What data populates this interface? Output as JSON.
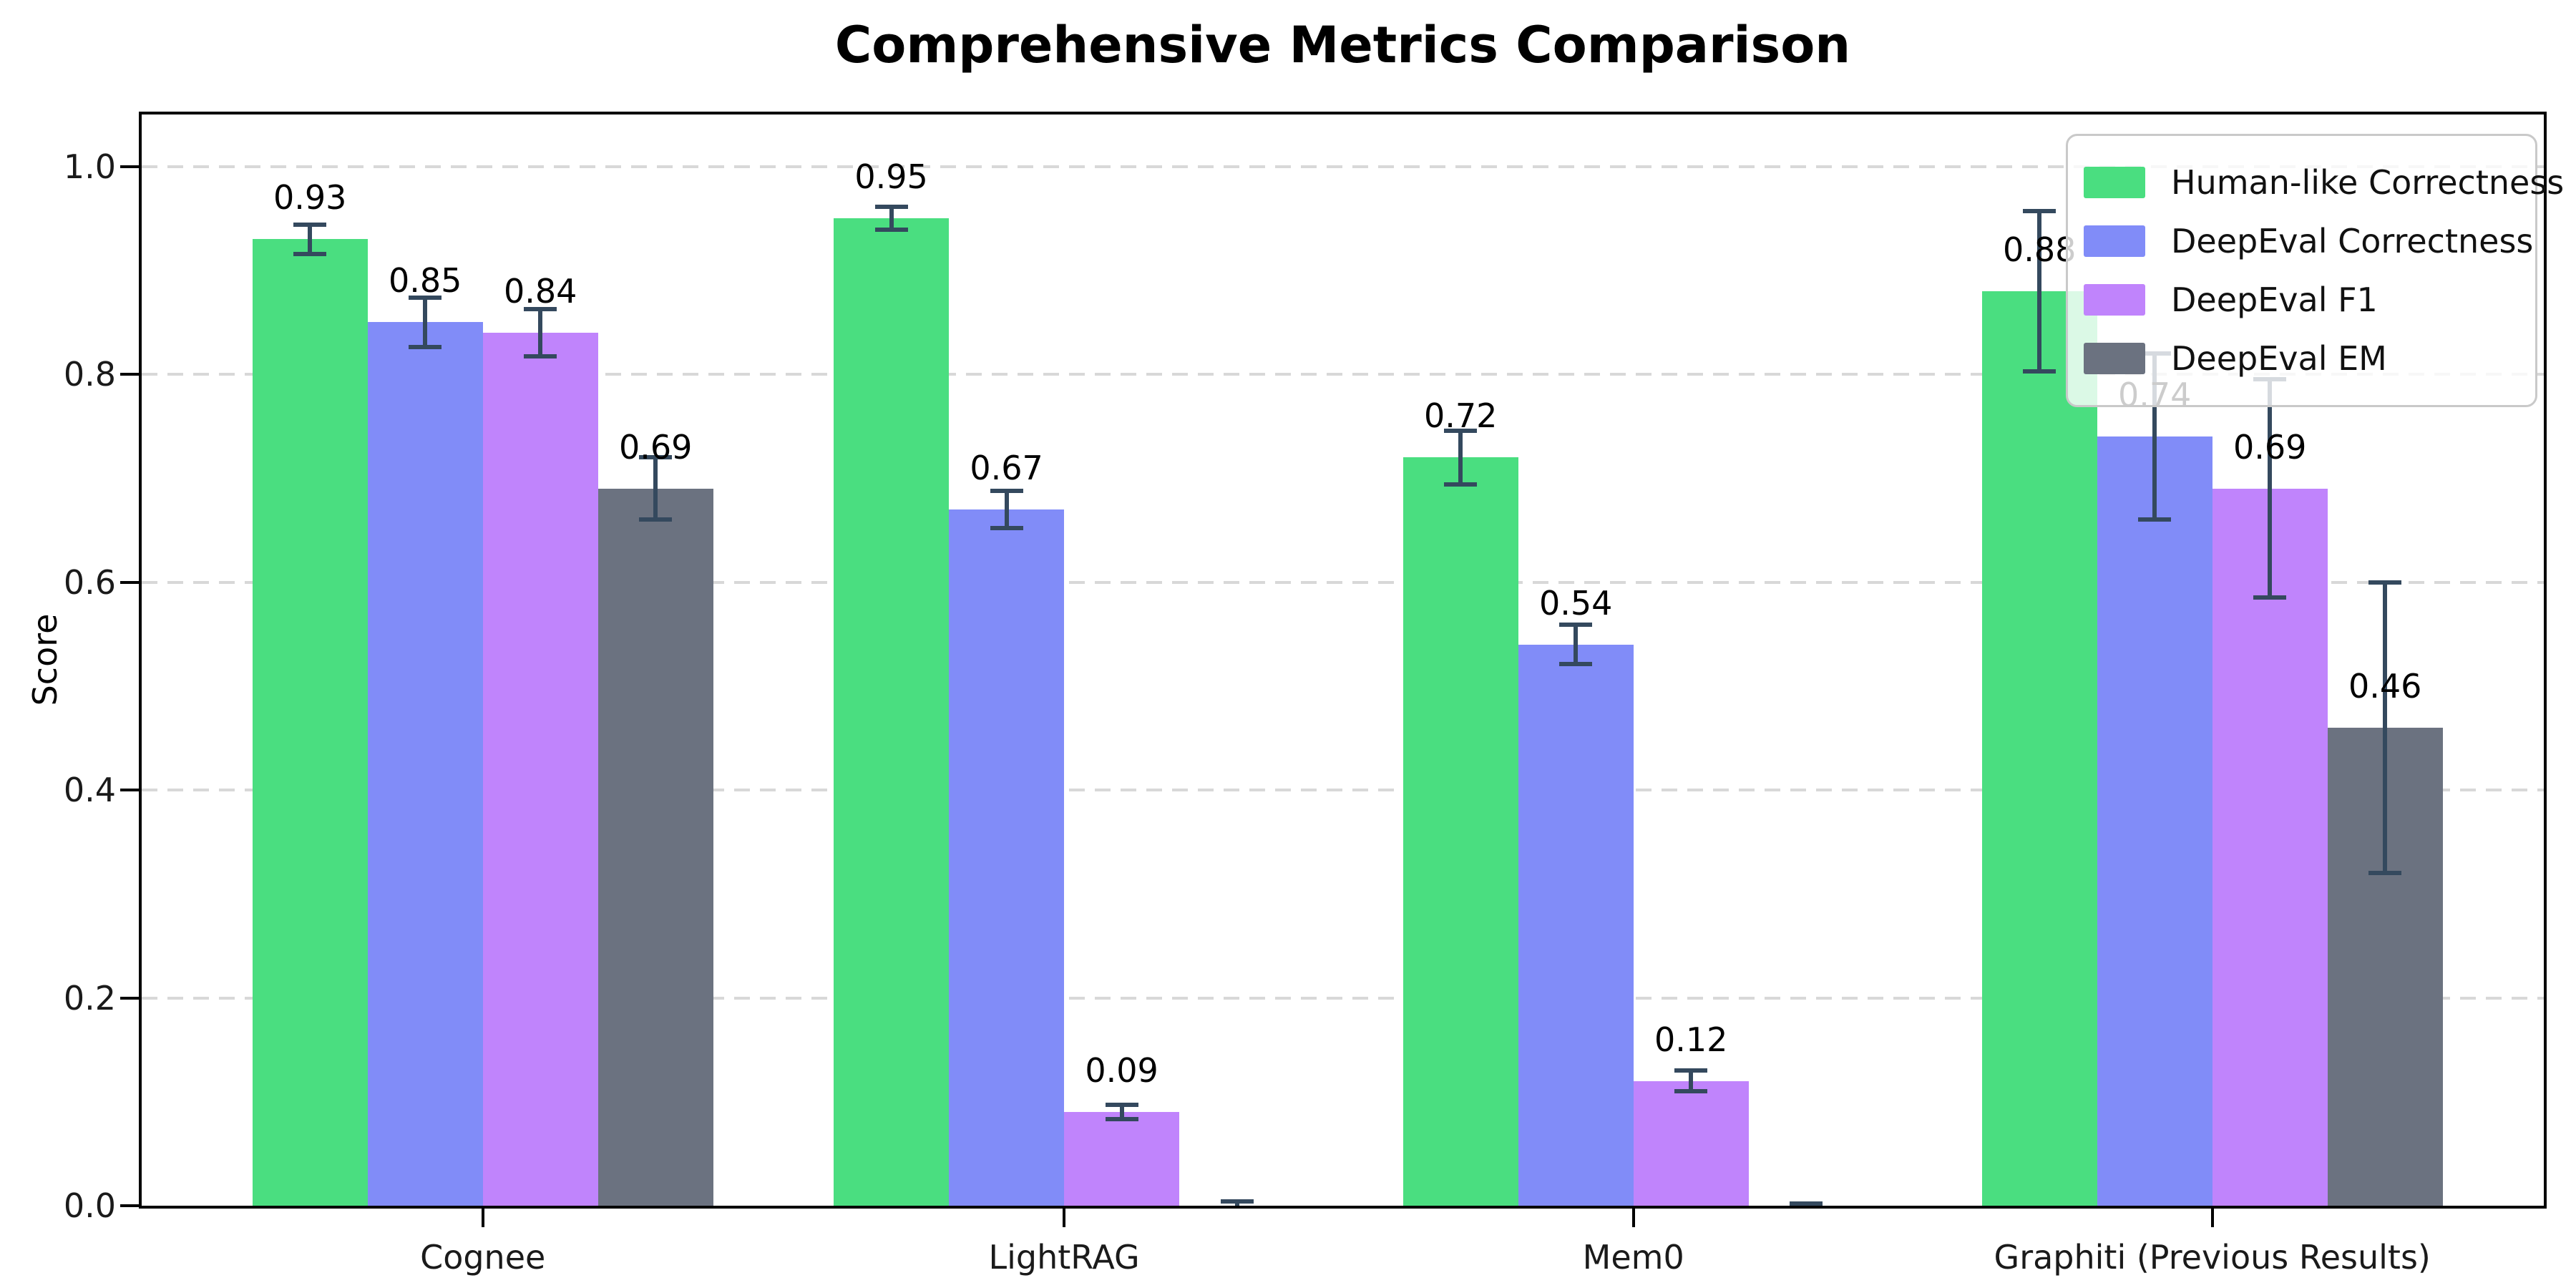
{
  "chart_data": {
    "type": "bar",
    "title": "Comprehensive Metrics Comparison",
    "ylabel": "Score",
    "xlabel": "",
    "ylim": [
      0,
      1.05
    ],
    "yticks": [
      0.0,
      0.2,
      0.4,
      0.6,
      0.8,
      1.0
    ],
    "ytick_labels": [
      "0.0",
      "0.2",
      "0.4",
      "0.6",
      "0.8",
      "1.0"
    ],
    "grid": "horizontal-dashed",
    "grid_color": "#d8d8d8",
    "background_color": "#ffffff",
    "error_bar_color": "#34495e",
    "legend_position": "upper right",
    "categories": [
      "Cognee",
      "LightRAG",
      "Mem0",
      "Graphiti (Previous Results)"
    ],
    "series": [
      {
        "name": "Human-like Correctness",
        "color": "#4ade80",
        "values": [
          0.93,
          0.95,
          0.72,
          0.88
        ],
        "errors": [
          0.014,
          0.011,
          0.026,
          0.077
        ],
        "labels": [
          "0.93",
          "0.95",
          "0.72",
          "0.88"
        ]
      },
      {
        "name": "DeepEval Correctness",
        "color": "#818cf8",
        "values": [
          0.85,
          0.67,
          0.54,
          0.74
        ],
        "errors": [
          0.024,
          0.018,
          0.019,
          0.08
        ],
        "labels": [
          "0.85",
          "0.67",
          "0.54",
          "0.74"
        ]
      },
      {
        "name": "DeepEval F1",
        "color": "#c084fc",
        "values": [
          0.84,
          0.09,
          0.12,
          0.69
        ],
        "errors": [
          0.023,
          0.007,
          0.01,
          0.105
        ],
        "labels": [
          "0.84",
          "0.09",
          "0.12",
          "0.69"
        ]
      },
      {
        "name": "DeepEval EM",
        "color": "#6b7280",
        "values": [
          0.69,
          0.0,
          0.0,
          0.46
        ],
        "errors": [
          0.03,
          0.004,
          0.002,
          0.14
        ],
        "labels": [
          "0.69",
          "",
          "",
          "0.46"
        ]
      }
    ]
  }
}
